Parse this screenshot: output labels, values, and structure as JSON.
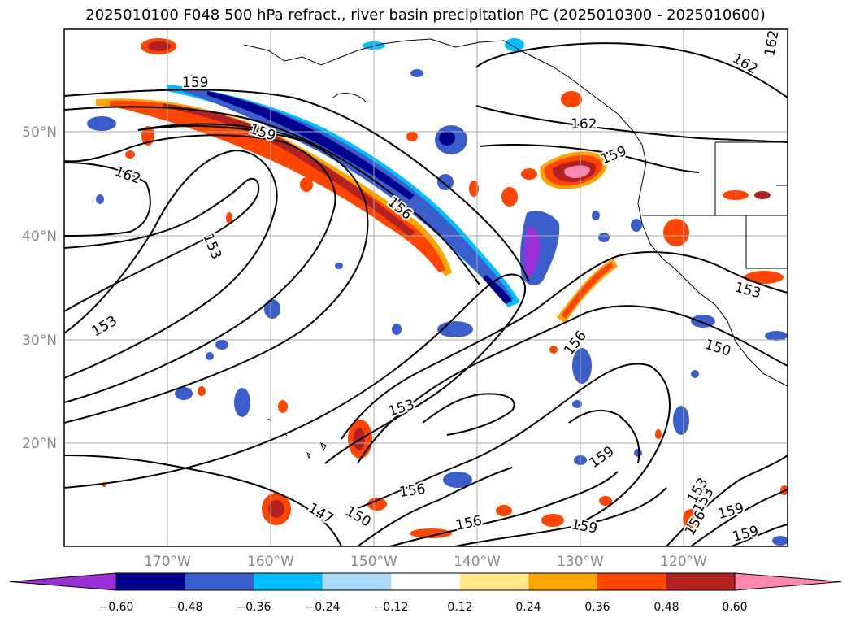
{
  "map": {
    "title": "2025010100 F048 500 hPa refract., river basin precipitation PC (2025010300 - 2025010600)",
    "extent": {
      "lon_min": -180,
      "lon_max": -110,
      "lat_min": 10,
      "lat_max": 60
    },
    "lat_labels": [
      "50°N",
      "40°N",
      "30°N",
      "20°N"
    ],
    "lat_values": [
      50,
      40,
      30,
      20
    ],
    "lon_labels": [
      "170°W",
      "160°W",
      "150°W",
      "140°W",
      "130°W",
      "120°W"
    ],
    "lon_values": [
      -170,
      -160,
      -150,
      -140,
      -130,
      -120
    ],
    "contour_labels": [
      "159",
      "159",
      "162",
      "162",
      "156",
      "153",
      "153",
      "162",
      "159",
      "153",
      "153",
      "150",
      "156",
      "153",
      "156",
      "147",
      "150",
      "159",
      "156",
      "159",
      "153",
      "156",
      "159",
      "159",
      "162"
    ],
    "colorbar": {
      "ticks": [
        "−0.60",
        "−0.48",
        "−0.36",
        "−0.24",
        "−0.12",
        "0.12",
        "0.24",
        "0.36",
        "0.48",
        "0.60"
      ],
      "colors": [
        "#9b30d9",
        "#000090",
        "#3a5fcd",
        "#00bfff",
        "#add8f7",
        "#ffffff",
        "#ffe88a",
        "#ffa500",
        "#ff4500",
        "#b22222",
        "#ff88b0"
      ]
    },
    "colors": {
      "grid": "#aaaaaa",
      "contour": "#000000",
      "coast": "#000000"
    }
  }
}
